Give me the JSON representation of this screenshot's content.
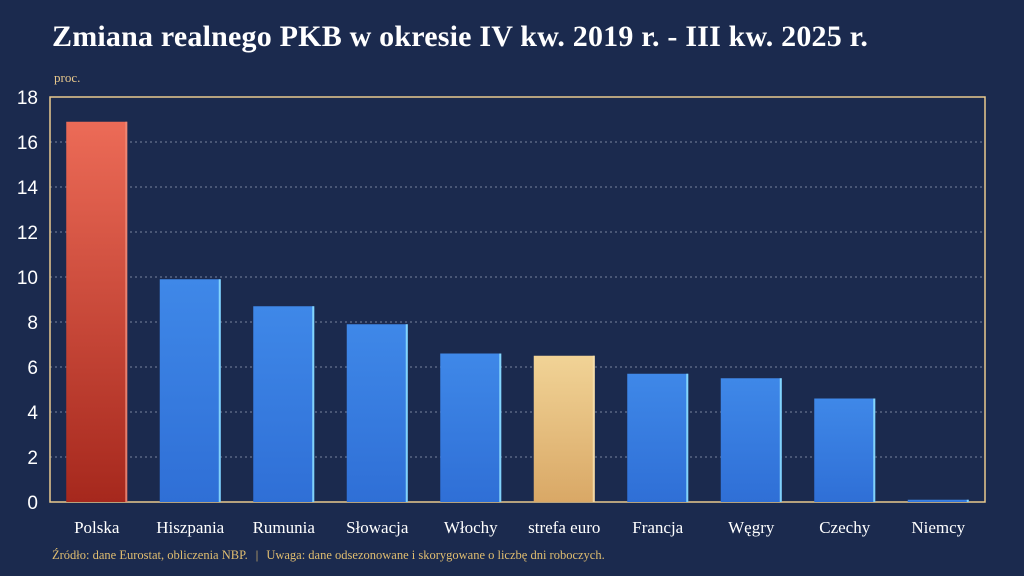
{
  "chart_data": {
    "type": "bar",
    "title": "Zmiana realnego PKB w okresie IV kw. 2019 r. - III kw. 2025 r.",
    "ylabel": "proc.",
    "xlabel": "",
    "ylim": [
      0,
      18
    ],
    "yticks": [
      0,
      2,
      4,
      6,
      8,
      10,
      12,
      14,
      16,
      18
    ],
    "grid": true,
    "categories": [
      "Polska",
      "Hiszpania",
      "Rumunia",
      "Słowacja",
      "Włochy",
      "strefa euro",
      "Francja",
      "Węgry",
      "Czechy",
      "Niemcy"
    ],
    "values": [
      16.9,
      9.9,
      8.7,
      7.9,
      6.6,
      6.5,
      5.7,
      5.5,
      4.6,
      0.1
    ],
    "highlight": {
      "Polska": "red",
      "strefa euro": "gold"
    }
  },
  "footer": {
    "source": "Źródło: dane Eurostat, obliczenia NBP.",
    "separator": "|",
    "note": "Uwaga: dane odsezonowane i skorygowane o liczbę dni roboczych."
  },
  "colors": {
    "background": "#1b2a4e",
    "frame": "#e9c98d",
    "bar_default": "#3d86e6",
    "bar_highlight_red": "#e86a55",
    "bar_highlight_gold": "#efcf8f",
    "accent_text": "#e0bd70"
  }
}
